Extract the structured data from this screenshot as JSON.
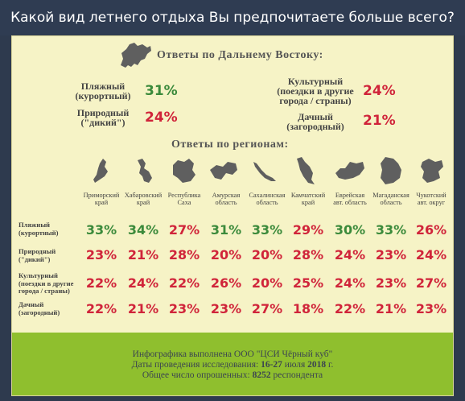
{
  "title": "Какой вид летнего отдыха Вы предпочитаете больше всего?",
  "far_east": {
    "title": "Ответы по Дальнему Востоку:",
    "items": [
      {
        "label_1": "Пляжный",
        "label_2": "(курортный)",
        "value": "31%",
        "color": "#3b8a3b"
      },
      {
        "label_1": "Культурный",
        "label_2": "(поездки в другие",
        "label_3": "города / страны)",
        "value": "24%",
        "color": "#d0243a"
      },
      {
        "label_1": "Природный",
        "label_2": "(\"дикий\")",
        "value": "24%",
        "color": "#d0243a"
      },
      {
        "label_1": "Дачный",
        "label_2": "(загородный)",
        "value": "21%",
        "color": "#d0243a"
      }
    ]
  },
  "regions_title": "Ответы по регионам:",
  "regions": [
    {
      "l1": "Приморский",
      "l2": "край"
    },
    {
      "l1": "Хабаровский",
      "l2": "край"
    },
    {
      "l1": "Республика",
      "l2": "Саха"
    },
    {
      "l1": "Амурская",
      "l2": "область"
    },
    {
      "l1": "Сахалинская",
      "l2": "область"
    },
    {
      "l1": "Камчатский",
      "l2": "край"
    },
    {
      "l1": "Еврейская",
      "l2": "авт. область"
    },
    {
      "l1": "Магаданская",
      "l2": "область"
    },
    {
      "l1": "Чукотский",
      "l2": "авт. округ"
    }
  ],
  "rows": [
    {
      "l1": "Пляжный",
      "l2": "(курортный)",
      "l3": "",
      "values": [
        "33%",
        "34%",
        "27%",
        "31%",
        "33%",
        "29%",
        "30%",
        "33%",
        "26%"
      ]
    },
    {
      "l1": "Природный",
      "l2": "(\"дикий\")",
      "l3": "",
      "values": [
        "23%",
        "21%",
        "28%",
        "20%",
        "20%",
        "28%",
        "24%",
        "23%",
        "24%"
      ]
    },
    {
      "l1": "Культурный",
      "l2": "(поездки в другие",
      "l3": "города / страны)",
      "values": [
        "22%",
        "24%",
        "22%",
        "26%",
        "20%",
        "25%",
        "24%",
        "23%",
        "27%"
      ]
    },
    {
      "l1": "Дачный",
      "l2": "(загородный)",
      "l3": "",
      "values": [
        "22%",
        "21%",
        "23%",
        "23%",
        "27%",
        "18%",
        "22%",
        "21%",
        "23%"
      ]
    }
  ],
  "colors": {
    "green": "#3b8a3b",
    "red": "#d0243a"
  },
  "footer": {
    "line1": "Инфографика выполнена ООО \"ЦСИ Чёрный куб\"",
    "line2_prefix": "Даты проведения исследования:",
    "line2_value": "16-27",
    "line2_mid": "июля",
    "line2_year": "2018",
    "line2_suffix": "г.",
    "line3_prefix": "Общее число опрошенных:",
    "line3_value": "8252",
    "line3_suffix": "респондента"
  }
}
